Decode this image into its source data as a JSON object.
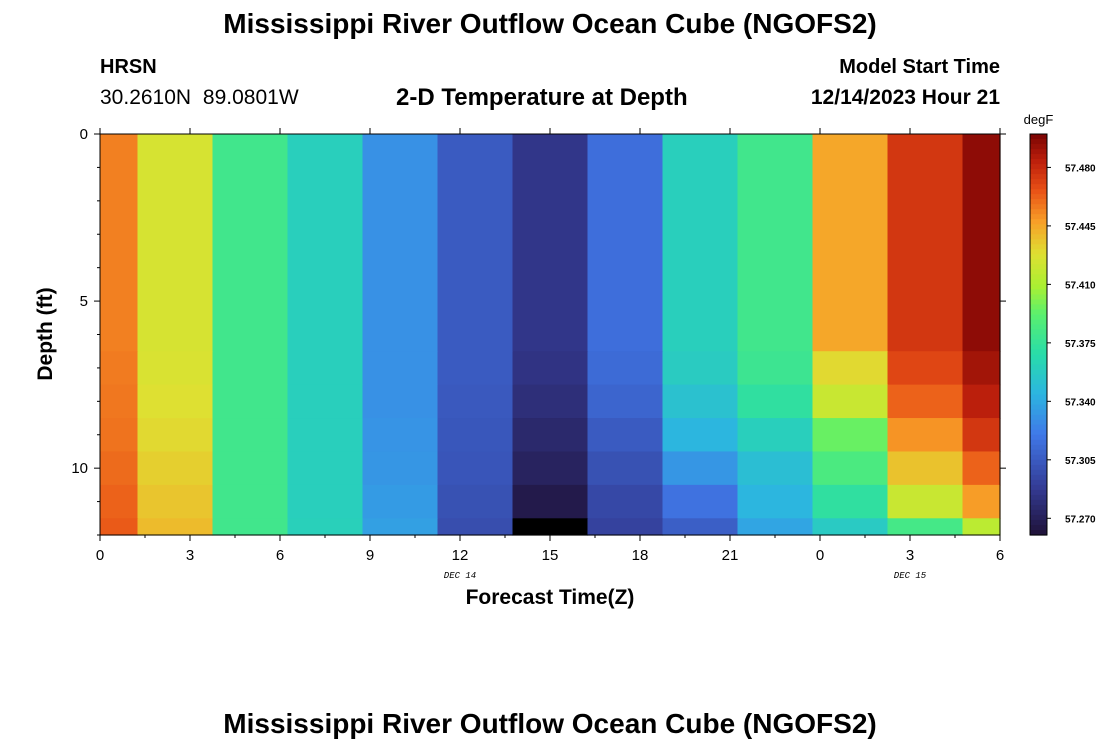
{
  "header": {
    "title": "Mississippi River Outflow Ocean Cube (NGOFS2)",
    "station": "HRSN",
    "coordinates": "30.2610N  89.0801W",
    "subtitle": "2-D Temperature at Depth",
    "start_label": "Model Start Time",
    "start_value": "12/14/2023 Hour 21"
  },
  "footer": {
    "title": "Mississippi River Outflow Ocean Cube (NGOFS2)"
  },
  "chart_data": {
    "type": "heatmap",
    "title": "2-D Temperature at Depth",
    "xlabel": "Forecast Time(Z)",
    "ylabel": "Depth (ft)",
    "x_tick_labels": [
      "0",
      "3",
      "6",
      "9",
      "12",
      "15",
      "18",
      "21",
      "0",
      "3",
      "6"
    ],
    "x_date_labels": [
      "DEC 14",
      "DEC 15"
    ],
    "y_tick_labels": [
      "0",
      "5",
      "10"
    ],
    "xlim_hours": [
      0,
      30
    ],
    "ylim_ft": [
      0,
      12
    ],
    "y_inverted": true,
    "colorbar": {
      "unit": "degF",
      "ticks": [
        57.48,
        57.445,
        57.41,
        57.375,
        57.34,
        57.305,
        57.27
      ],
      "tick_labels": [
        "57.480",
        "57.445",
        "57.410",
        "57.375",
        "57.340",
        "57.305",
        "57.270"
      ],
      "range": [
        57.26,
        57.5
      ]
    },
    "column_edges_hours": [
      0,
      1.25,
      3.75,
      6.25,
      8.75,
      11.25,
      13.75,
      16.25,
      18.75,
      21.25,
      23.75,
      26.25,
      28.75,
      30
    ],
    "row_edges_ft": [
      0,
      6.5,
      7.5,
      8.5,
      9.5,
      10.5,
      11.5,
      12
    ],
    "values": [
      [
        57.455,
        57.425,
        57.38,
        57.36,
        57.33,
        57.305,
        57.285,
        57.315,
        57.36,
        57.38,
        57.445,
        57.475,
        57.495
      ],
      [
        57.456,
        57.426,
        57.38,
        57.36,
        57.33,
        57.305,
        57.283,
        57.313,
        57.358,
        57.378,
        57.43,
        57.47,
        57.49
      ],
      [
        57.457,
        57.428,
        57.38,
        57.36,
        57.33,
        57.304,
        57.28,
        57.31,
        57.352,
        57.372,
        57.42,
        57.462,
        57.484
      ],
      [
        57.458,
        57.43,
        57.38,
        57.36,
        57.331,
        57.303,
        57.276,
        57.305,
        57.345,
        57.36,
        57.395,
        57.45,
        57.475
      ],
      [
        57.46,
        57.433,
        57.38,
        57.36,
        57.332,
        57.302,
        57.272,
        57.3,
        57.332,
        57.35,
        57.385,
        57.437,
        57.462
      ],
      [
        57.462,
        57.436,
        57.38,
        57.36,
        57.334,
        57.3,
        57.266,
        57.295,
        57.317,
        57.345,
        57.372,
        57.42,
        57.448
      ],
      [
        57.464,
        57.439,
        57.38,
        57.361,
        57.336,
        57.298,
        57.25,
        57.292,
        57.307,
        57.338,
        57.357,
        57.382,
        57.415
      ]
    ]
  }
}
